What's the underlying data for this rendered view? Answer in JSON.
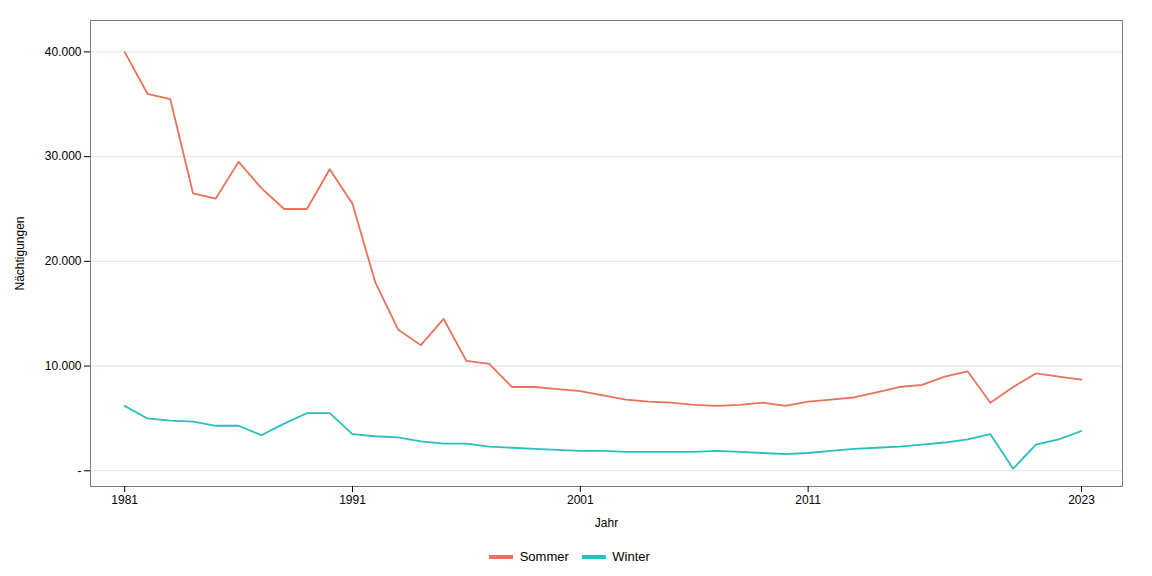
{
  "chart_data": {
    "type": "line",
    "xlabel": "Jahr",
    "ylabel": "Nächtigungen",
    "x": [
      1981,
      1982,
      1983,
      1984,
      1985,
      1986,
      1987,
      1988,
      1989,
      1990,
      1991,
      1992,
      1993,
      1994,
      1995,
      1996,
      1997,
      1998,
      1999,
      2000,
      2001,
      2002,
      2003,
      2004,
      2005,
      2006,
      2007,
      2008,
      2009,
      2010,
      2011,
      2012,
      2013,
      2014,
      2015,
      2016,
      2017,
      2018,
      2019,
      2020,
      2021,
      2022,
      2023
    ],
    "series": [
      {
        "name": "Sommer",
        "color": "#E8735A",
        "values": [
          40000,
          36000,
          35500,
          26500,
          26000,
          29500,
          27000,
          25000,
          25000,
          28800,
          25500,
          18000,
          13500,
          12000,
          14500,
          10500,
          10200,
          8000,
          8000,
          7800,
          7600,
          7200,
          6800,
          6600,
          6500,
          6300,
          6200,
          6300,
          6500,
          6200,
          6600,
          6800,
          7000,
          7500,
          8000,
          8200,
          9000,
          9500,
          6500,
          8000,
          9300,
          9000,
          8700
        ]
      },
      {
        "name": "Winter",
        "color": "#2ABFBF",
        "values": [
          6200,
          5000,
          4800,
          4700,
          4300,
          4300,
          3400,
          4500,
          5500,
          5500,
          3500,
          3300,
          3200,
          2800,
          2600,
          2600,
          2300,
          2200,
          2100,
          2000,
          1900,
          1900,
          1800,
          1800,
          1800,
          1800,
          1900,
          1800,
          1700,
          1600,
          1700,
          1900,
          2100,
          2200,
          2300,
          2500,
          2700,
          3000,
          3500,
          200,
          2500,
          3000,
          3800
        ]
      }
    ],
    "xlim": [
      1979.5,
      2024.8
    ],
    "xticks": [
      1981,
      1991,
      2001,
      2011,
      2023
    ],
    "ylim": [
      -1500,
      43000
    ],
    "yticks": [
      {
        "value": 0,
        "label": "-"
      },
      {
        "value": 10000,
        "label": "10.000"
      },
      {
        "value": 20000,
        "label": "20.000"
      },
      {
        "value": 30000,
        "label": "30.000"
      },
      {
        "value": 40000,
        "label": "40.000"
      }
    ],
    "grid": true,
    "legend": "bottom"
  }
}
